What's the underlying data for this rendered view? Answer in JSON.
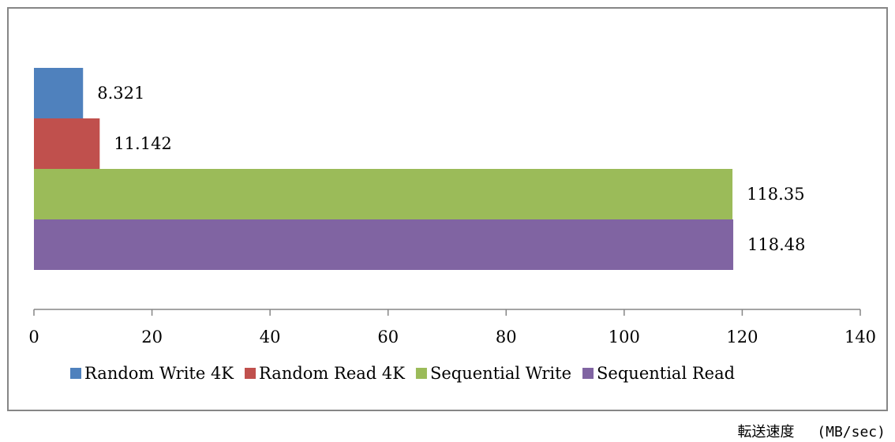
{
  "chart_data": {
    "type": "bar",
    "orientation": "horizontal",
    "series": [
      {
        "name": "Random Write 4K",
        "value": 8.321,
        "label": "8.321",
        "color": "#4f81bd"
      },
      {
        "name": "Random Read 4K",
        "value": 11.142,
        "label": "11.142",
        "color": "#c0504d"
      },
      {
        "name": "Sequential Write",
        "value": 118.35,
        "label": "118.35",
        "color": "#9bbb59"
      },
      {
        "name": "Sequential Read",
        "value": 118.48,
        "label": "118.48",
        "color": "#8064a2"
      }
    ],
    "xlim": [
      0,
      140
    ],
    "xticks": [
      "0",
      "20",
      "40",
      "60",
      "80",
      "100",
      "120",
      "140"
    ],
    "grid": false,
    "legend_position": "bottom"
  },
  "caption": "転送速度　 (MB/sec)",
  "colors": {
    "frame": "#868686",
    "axis": "#868686"
  }
}
